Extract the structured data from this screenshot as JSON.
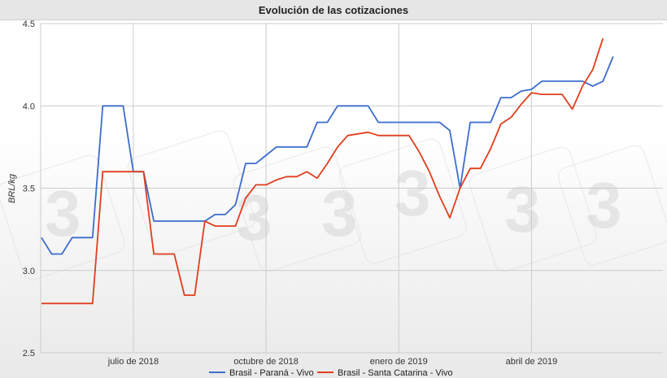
{
  "title": "Evolución de las cotizaciones",
  "chart_data": {
    "type": "line",
    "title": "Evolución de las cotizaciones",
    "xlabel": "",
    "ylabel": "BRL/kg",
    "ylim": [
      2.5,
      4.5
    ],
    "yticks": [
      "2.5",
      "3.0",
      "3.5",
      "4.0",
      "4.5"
    ],
    "xticks": [
      {
        "label": "julio de 2018",
        "week": 9
      },
      {
        "label": "octubre de 2018",
        "week": 22
      },
      {
        "label": "enero de 2019",
        "week": 35
      },
      {
        "label": "abril de 2019",
        "week": 48
      }
    ],
    "grid": true,
    "legend_position": "bottom",
    "series": [
      {
        "name": "Brasil - Paraná - Vivo",
        "color": "#3d6ccd",
        "values": [
          3.2,
          3.1,
          3.1,
          3.2,
          3.2,
          3.2,
          4.0,
          4.0,
          4.0,
          3.6,
          3.6,
          3.3,
          3.3,
          3.3,
          3.3,
          3.3,
          3.3,
          3.34,
          3.34,
          3.4,
          3.65,
          3.65,
          3.7,
          3.75,
          3.75,
          3.75,
          3.75,
          3.9,
          3.9,
          4.0,
          4.0,
          4.0,
          4.0,
          3.9,
          3.9,
          3.9,
          3.9,
          3.9,
          3.9,
          3.9,
          3.85,
          3.5,
          3.9,
          3.9,
          3.9,
          4.05,
          4.05,
          4.09,
          4.1,
          4.15,
          4.15,
          4.15,
          4.15,
          4.15,
          4.12,
          4.15,
          4.3
        ]
      },
      {
        "name": "Brasil - Santa Catarina - Vivo",
        "color": "#e03e1d",
        "values": [
          2.8,
          2.8,
          2.8,
          2.8,
          2.8,
          2.8,
          3.6,
          3.6,
          3.6,
          3.6,
          3.6,
          3.1,
          3.1,
          3.1,
          2.85,
          2.85,
          3.3,
          3.27,
          3.27,
          3.27,
          3.44,
          3.52,
          3.52,
          3.55,
          3.57,
          3.57,
          3.6,
          3.56,
          3.65,
          3.75,
          3.82,
          3.83,
          3.84,
          3.82,
          3.82,
          3.82,
          3.82,
          3.72,
          3.6,
          3.45,
          3.32,
          3.5,
          3.62,
          3.62,
          3.74,
          3.89,
          3.93,
          4.01,
          4.08,
          4.07,
          4.07,
          4.07,
          3.98,
          4.12,
          4.22,
          4.41
        ]
      }
    ]
  }
}
